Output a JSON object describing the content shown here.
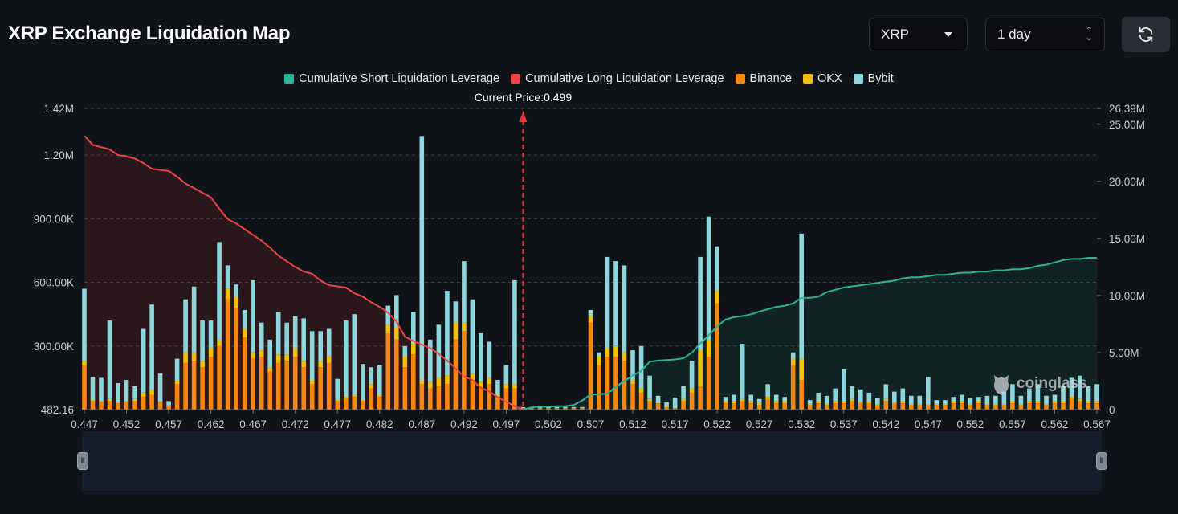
{
  "title": "XRP Exchange Liquidation Map",
  "controls": {
    "coin": "XRP",
    "timeframe": "1 day"
  },
  "watermark": "coinglass",
  "colors": {
    "short_line": "#2bb39a",
    "long_line": "#e8454a",
    "binance": "#f7870f",
    "okx": "#f4c10a",
    "bybit": "#8fd6db",
    "current_price": "#e8333a"
  },
  "chart_data": {
    "type": "bar",
    "title": "XRP Exchange Liquidation Map",
    "current_price_label": "Current Price:0.499",
    "current_price": 0.499,
    "legend": [
      {
        "name": "Cumulative Short Liquidation Leverage",
        "color": "#2bb39a"
      },
      {
        "name": "Cumulative Long Liquidation Leverage",
        "color": "#e8454a"
      },
      {
        "name": "Binance",
        "color": "#f7870f"
      },
      {
        "name": "OKX",
        "color": "#f4c10a"
      },
      {
        "name": "Bybit",
        "color": "#8fd6db"
      }
    ],
    "x_ticks": [
      "0.447",
      "0.452",
      "0.457",
      "0.462",
      "0.467",
      "0.472",
      "0.477",
      "0.482",
      "0.487",
      "0.492",
      "0.497",
      "0.502",
      "0.507",
      "0.512",
      "0.517",
      "0.522",
      "0.527",
      "0.532",
      "0.537",
      "0.542",
      "0.547",
      "0.552",
      "0.557",
      "0.562",
      "0.567"
    ],
    "y_left_ticks": [
      "482.16",
      "300.00K",
      "600.00K",
      "900.00K",
      "1.20M",
      "1.42M"
    ],
    "y_right_ticks": [
      "0",
      "5.00M",
      "10.00M",
      "15.00M",
      "20.00M",
      "25.00M",
      "26.39M"
    ],
    "x_range": [
      0.447,
      0.567
    ],
    "y_left_range": [
      0,
      1420000
    ],
    "y_right_range": [
      0,
      26390000
    ],
    "bars": {
      "x": [
        0.447,
        0.448,
        0.449,
        0.45,
        0.451,
        0.452,
        0.453,
        0.454,
        0.455,
        0.456,
        0.457,
        0.458,
        0.459,
        0.46,
        0.461,
        0.462,
        0.463,
        0.464,
        0.465,
        0.466,
        0.467,
        0.468,
        0.469,
        0.47,
        0.471,
        0.472,
        0.473,
        0.474,
        0.475,
        0.476,
        0.477,
        0.478,
        0.479,
        0.48,
        0.481,
        0.482,
        0.483,
        0.484,
        0.485,
        0.486,
        0.487,
        0.488,
        0.489,
        0.49,
        0.491,
        0.492,
        0.493,
        0.494,
        0.495,
        0.496,
        0.497,
        0.498,
        0.499,
        0.5,
        0.501,
        0.502,
        0.503,
        0.504,
        0.505,
        0.506,
        0.507,
        0.508,
        0.509,
        0.51,
        0.511,
        0.512,
        0.513,
        0.514,
        0.515,
        0.516,
        0.517,
        0.518,
        0.519,
        0.52,
        0.521,
        0.522,
        0.523,
        0.524,
        0.525,
        0.526,
        0.527,
        0.528,
        0.529,
        0.53,
        0.531,
        0.532,
        0.533,
        0.534,
        0.535,
        0.536,
        0.537,
        0.538,
        0.539,
        0.54,
        0.541,
        0.542,
        0.543,
        0.544,
        0.545,
        0.546,
        0.547,
        0.548,
        0.549,
        0.55,
        0.551,
        0.552,
        0.553,
        0.554,
        0.555,
        0.556,
        0.557,
        0.558,
        0.559,
        0.56,
        0.561,
        0.562,
        0.563,
        0.564,
        0.565,
        0.566,
        0.567
      ],
      "binance": [
        210000,
        40000,
        35000,
        40000,
        30000,
        35000,
        40000,
        60000,
        70000,
        35000,
        15000,
        120000,
        220000,
        230000,
        200000,
        250000,
        300000,
        520000,
        480000,
        340000,
        240000,
        250000,
        180000,
        220000,
        230000,
        250000,
        200000,
        120000,
        200000,
        220000,
        40000,
        50000,
        60000,
        40000,
        100000,
        60000,
        360000,
        330000,
        200000,
        260000,
        120000,
        100000,
        110000,
        120000,
        330000,
        370000,
        140000,
        110000,
        120000,
        60000,
        100000,
        100000,
        5000,
        5000,
        5000,
        5000,
        5000,
        5000,
        5000,
        5000,
        410000,
        210000,
        250000,
        250000,
        230000,
        120000,
        80000,
        40000,
        30000,
        10000,
        5000,
        40000,
        80000,
        110000,
        250000,
        500000,
        30000,
        30000,
        40000,
        30000,
        20000,
        50000,
        30000,
        30000,
        210000,
        140000,
        20000,
        30000,
        20000,
        30000,
        30000,
        40000,
        30000,
        30000,
        20000,
        40000,
        30000,
        30000,
        20000,
        20000,
        20000,
        20000,
        20000,
        30000,
        30000,
        20000,
        30000,
        20000,
        20000,
        20000,
        30000,
        20000,
        30000,
        30000,
        20000,
        30000,
        30000,
        50000,
        40000,
        30000,
        30000
      ],
      "okx": [
        20000,
        5000,
        5000,
        10000,
        5000,
        5000,
        10000,
        20000,
        25000,
        5000,
        5000,
        20000,
        50000,
        40000,
        30000,
        40000,
        30000,
        50000,
        50000,
        40000,
        30000,
        30000,
        20000,
        40000,
        30000,
        40000,
        30000,
        20000,
        30000,
        30000,
        5000,
        10000,
        10000,
        5000,
        20000,
        10000,
        40000,
        60000,
        50000,
        50000,
        20000,
        30000,
        40000,
        40000,
        80000,
        40000,
        30000,
        20000,
        30000,
        10000,
        20000,
        20000,
        2000,
        2000,
        2000,
        2000,
        2000,
        2000,
        2000,
        2000,
        30000,
        40000,
        40000,
        50000,
        40000,
        20000,
        20000,
        10000,
        5000,
        5000,
        2000,
        10000,
        20000,
        170000,
        80000,
        60000,
        10000,
        10000,
        10000,
        10000,
        10000,
        10000,
        10000,
        10000,
        30000,
        100000,
        5000,
        10000,
        5000,
        10000,
        10000,
        10000,
        5000,
        10000,
        5000,
        10000,
        5000,
        10000,
        5000,
        5000,
        5000,
        5000,
        5000,
        10000,
        10000,
        5000,
        10000,
        5000,
        5000,
        5000,
        10000,
        5000,
        10000,
        10000,
        5000,
        10000,
        10000,
        10000,
        10000,
        10000,
        10000
      ],
      "bybit": [
        340000,
        110000,
        110000,
        370000,
        90000,
        100000,
        60000,
        300000,
        400000,
        130000,
        20000,
        100000,
        250000,
        310000,
        190000,
        130000,
        460000,
        110000,
        60000,
        90000,
        340000,
        130000,
        130000,
        200000,
        150000,
        150000,
        200000,
        230000,
        140000,
        130000,
        100000,
        360000,
        380000,
        170000,
        80000,
        140000,
        90000,
        150000,
        50000,
        150000,
        1150000,
        200000,
        250000,
        400000,
        100000,
        290000,
        350000,
        230000,
        170000,
        70000,
        90000,
        490000,
        5000,
        5000,
        5000,
        5000,
        5000,
        5000,
        5000,
        5000,
        30000,
        20000,
        430000,
        400000,
        410000,
        140000,
        200000,
        110000,
        30000,
        20000,
        50000,
        60000,
        130000,
        440000,
        580000,
        210000,
        20000,
        30000,
        260000,
        30000,
        20000,
        60000,
        30000,
        20000,
        30000,
        590000,
        20000,
        40000,
        40000,
        60000,
        150000,
        60000,
        60000,
        40000,
        30000,
        70000,
        50000,
        60000,
        40000,
        40000,
        130000,
        20000,
        20000,
        20000,
        30000,
        30000,
        20000,
        40000,
        40000,
        60000,
        80000,
        40000,
        60000,
        80000,
        40000,
        30000,
        70000,
        90000,
        110000,
        70000,
        80000
      ]
    },
    "long_cumulative": {
      "x": [
        0.447,
        0.448,
        0.449,
        0.45,
        0.451,
        0.452,
        0.453,
        0.454,
        0.455,
        0.456,
        0.457,
        0.458,
        0.459,
        0.46,
        0.461,
        0.462,
        0.463,
        0.464,
        0.465,
        0.466,
        0.467,
        0.468,
        0.469,
        0.47,
        0.471,
        0.472,
        0.473,
        0.474,
        0.475,
        0.476,
        0.477,
        0.478,
        0.479,
        0.48,
        0.481,
        0.482,
        0.483,
        0.484,
        0.485,
        0.486,
        0.487,
        0.488,
        0.489,
        0.49,
        0.491,
        0.492,
        0.493,
        0.494,
        0.495,
        0.496,
        0.497,
        0.498,
        0.499
      ],
      "values": [
        24000000,
        23200000,
        23000000,
        22800000,
        22300000,
        22200000,
        22000000,
        21600000,
        21100000,
        21000000,
        20900000,
        20400000,
        19800000,
        19400000,
        19000000,
        18600000,
        17600000,
        16700000,
        16300000,
        15800000,
        15300000,
        14800000,
        14200000,
        13500000,
        13000000,
        12500000,
        12100000,
        11900000,
        11300000,
        10900000,
        10800000,
        10700000,
        10200000,
        9900000,
        9400000,
        9000000,
        8500000,
        7700000,
        6400000,
        6000000,
        5700000,
        5400000,
        4900000,
        4300000,
        3600000,
        2900000,
        2600000,
        1900000,
        1600000,
        1100000,
        700000,
        300000,
        0
      ]
    },
    "short_cumulative": {
      "x": [
        0.499,
        0.5,
        0.501,
        0.502,
        0.503,
        0.504,
        0.505,
        0.506,
        0.507,
        0.508,
        0.509,
        0.51,
        0.511,
        0.512,
        0.513,
        0.514,
        0.515,
        0.516,
        0.517,
        0.518,
        0.519,
        0.52,
        0.521,
        0.522,
        0.523,
        0.524,
        0.525,
        0.526,
        0.527,
        0.528,
        0.529,
        0.53,
        0.531,
        0.532,
        0.533,
        0.534,
        0.535,
        0.536,
        0.537,
        0.538,
        0.539,
        0.54,
        0.541,
        0.542,
        0.543,
        0.544,
        0.545,
        0.546,
        0.547,
        0.548,
        0.549,
        0.55,
        0.551,
        0.552,
        0.553,
        0.554,
        0.555,
        0.556,
        0.557,
        0.558,
        0.559,
        0.56,
        0.561,
        0.562,
        0.563,
        0.564,
        0.565,
        0.566,
        0.567
      ],
      "values": [
        0,
        200000,
        250000,
        250000,
        300000,
        300000,
        400000,
        800000,
        1300000,
        1350000,
        1400000,
        2000000,
        2500000,
        3000000,
        3400000,
        4200000,
        4300000,
        4350000,
        4400000,
        4500000,
        5000000,
        5800000,
        6500000,
        7300000,
        7900000,
        8100000,
        8200000,
        8350000,
        8600000,
        8800000,
        9000000,
        9100000,
        9300000,
        9800000,
        9800000,
        9900000,
        10300000,
        10500000,
        10700000,
        10800000,
        10900000,
        11000000,
        11100000,
        11200000,
        11300000,
        11500000,
        11600000,
        11600000,
        11700000,
        11800000,
        11800000,
        11900000,
        12000000,
        12000000,
        12100000,
        12100000,
        12200000,
        12200000,
        12300000,
        12300000,
        12400000,
        12600000,
        12700000,
        12900000,
        13100000,
        13200000,
        13200000,
        13300000,
        13300000
      ]
    }
  }
}
